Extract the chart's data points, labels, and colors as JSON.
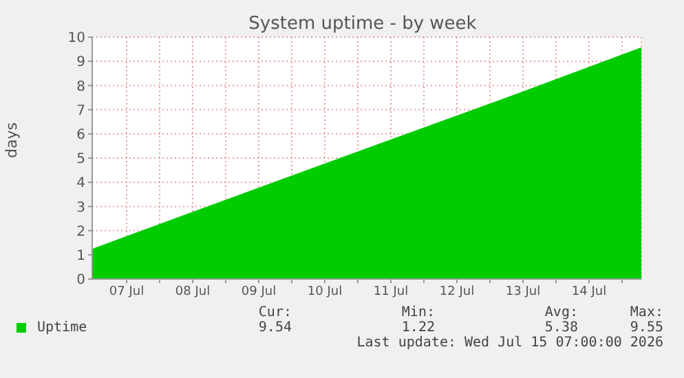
{
  "chart_data": {
    "type": "area",
    "title": "System uptime - by week",
    "ylabel": "days",
    "x": [
      "2026-07-06T23:30",
      "2026-07-09T00:00",
      "2026-07-11T03:15",
      "2026-07-13T06:00",
      "2026-07-15T07:00"
    ],
    "series": [
      {
        "name": "Uptime",
        "color": "#00cc00",
        "values": [
          1.22,
          3.25,
          5.38,
          7.47,
          9.55
        ]
      }
    ],
    "xlim": [
      "2026-07-06T23:30",
      "2026-07-15T07:00"
    ],
    "xticks": [
      {
        "value": "2026-07-07T12:00",
        "label": "07 Jul"
      },
      {
        "value": "2026-07-08T00:00",
        "label": null
      },
      {
        "value": "2026-07-08T12:00",
        "label": "08 Jul"
      },
      {
        "value": "2026-07-09T00:00",
        "label": null
      },
      {
        "value": "2026-07-09T12:00",
        "label": "09 Jul"
      },
      {
        "value": "2026-07-10T00:00",
        "label": null
      },
      {
        "value": "2026-07-10T12:00",
        "label": "10 Jul"
      },
      {
        "value": "2026-07-11T00:00",
        "label": null
      },
      {
        "value": "2026-07-11T12:00",
        "label": "11 Jul"
      },
      {
        "value": "2026-07-12T00:00",
        "label": null
      },
      {
        "value": "2026-07-12T12:00",
        "label": "12 Jul"
      },
      {
        "value": "2026-07-13T00:00",
        "label": null
      },
      {
        "value": "2026-07-13T12:00",
        "label": "13 Jul"
      },
      {
        "value": "2026-07-14T00:00",
        "label": null
      },
      {
        "value": "2026-07-14T12:00",
        "label": "14 Jul"
      },
      {
        "value": "2026-07-15T00:00",
        "label": null
      }
    ],
    "ylim": [
      0,
      10
    ],
    "yticks": [
      0,
      1,
      2,
      3,
      4,
      5,
      6,
      7,
      8,
      9,
      10
    ],
    "grid": true,
    "legend": "bottom",
    "annotations": [
      "Cur:",
      "Min:",
      "Avg:",
      "Max:",
      "9.54",
      "1.22",
      "5.38",
      "9.55",
      "Last update: Wed Jul 15 07:00:00 2026"
    ]
  }
}
